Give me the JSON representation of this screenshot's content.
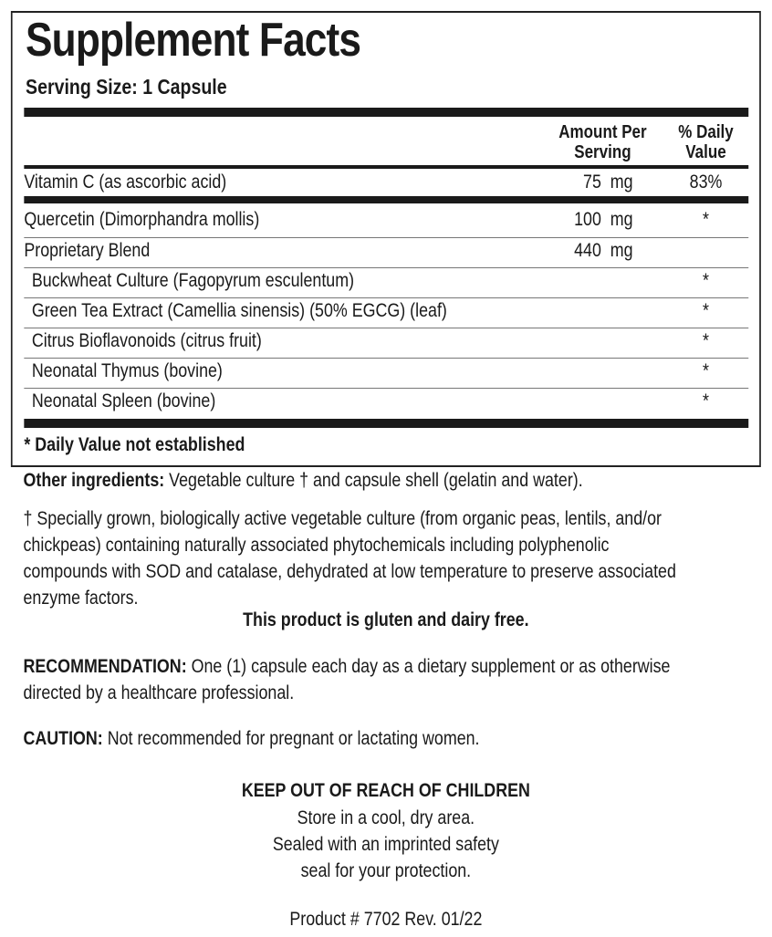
{
  "title": "Supplement Facts",
  "serving_size": "Serving Size: 1 Capsule",
  "headers": {
    "amount": [
      "Amount Per",
      "Serving"
    ],
    "dv": [
      "% Daily",
      "Value"
    ]
  },
  "rows": [
    {
      "name": "Vitamin C (as ascorbic acid)",
      "amount": "75  mg",
      "dv": "83%"
    },
    {
      "name": "Quercetin (Dimorphandra mollis)",
      "amount": "100  mg",
      "dv": "*"
    },
    {
      "name": "Proprietary Blend",
      "amount": "440  mg",
      "dv": ""
    },
    {
      "name": "Buckwheat Culture (Fagopyrum esculentum)",
      "amount": "",
      "dv": "*"
    },
    {
      "name": "Green Tea Extract (Camellia sinensis) (50% EGCG) (leaf)",
      "amount": "",
      "dv": "*"
    },
    {
      "name": "Citrus Bioflavonoids (citrus fruit)",
      "amount": "",
      "dv": "*"
    },
    {
      "name": "Neonatal Thymus (bovine)",
      "amount": "",
      "dv": "*"
    },
    {
      "name": "Neonatal Spleen (bovine)",
      "amount": "",
      "dv": "*"
    }
  ],
  "footnote": "* Daily Value not established",
  "other_ingredients": {
    "label": "Other ingredients:",
    "text": " Vegetable culture † and capsule shell (gelatin and water)."
  },
  "dagger_note": [
    "† Specially grown, biologically active vegetable culture (from organic peas, lentils, and/or",
    "chickpeas) containing naturally associated phytochemicals including polyphenolic",
    "compounds with SOD and catalase, dehydrated at low temperature to preserve associated",
    "enzyme factors."
  ],
  "gluten_note": "This product is gluten and dairy free.",
  "recommendation": {
    "label": "RECOMMENDATION:",
    "lines": [
      " One (1) capsule each day as a dietary supplement or as otherwise",
      "directed by a healthcare professional."
    ]
  },
  "caution": {
    "label": "CAUTION:",
    "text": " Not recommended for pregnant or lactating women."
  },
  "keep_out": "KEEP OUT OF REACH OF CHILDREN",
  "storage": [
    "Store in a cool, dry area.",
    "Sealed with an imprinted safety",
    "seal for your protection."
  ],
  "product": "Product # 7702  Rev. 01/22"
}
